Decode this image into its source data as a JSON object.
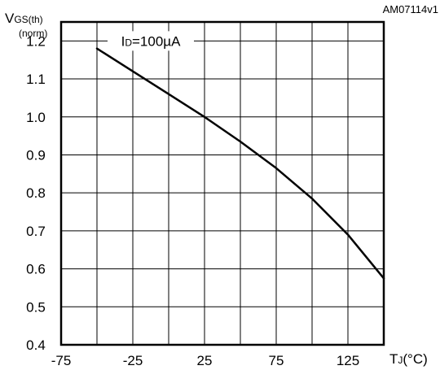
{
  "doc_code": "AM07114v1",
  "y_axis": {
    "symbol": "V",
    "subscript": "GS(th)",
    "unit": "(norm)"
  },
  "x_axis": {
    "symbol": "T",
    "subscript": "J",
    "unit": "(°C)"
  },
  "annotation": {
    "symbol": "I",
    "subscript": "D",
    "text": "=100µA"
  },
  "chart_data": {
    "type": "line",
    "title": "",
    "xlabel": "TJ(°C)",
    "ylabel": "VGS(th) (norm)",
    "xlim": [
      -75,
      150
    ],
    "ylim": [
      0.4,
      1.25
    ],
    "x_ticks": [
      "-75",
      "-25",
      "25",
      "75",
      "125"
    ],
    "y_ticks": [
      "0.4",
      "0.5",
      "0.6",
      "0.7",
      "0.8",
      "0.9",
      "1.0",
      "1.1",
      "1.2"
    ],
    "grid": true,
    "series": [
      {
        "x": [
          -50,
          -25,
          0,
          25,
          50,
          75,
          100,
          125,
          150
        ],
        "y": [
          1.18,
          1.12,
          1.06,
          1.0,
          0.935,
          0.865,
          0.785,
          0.69,
          0.575
        ]
      }
    ]
  }
}
